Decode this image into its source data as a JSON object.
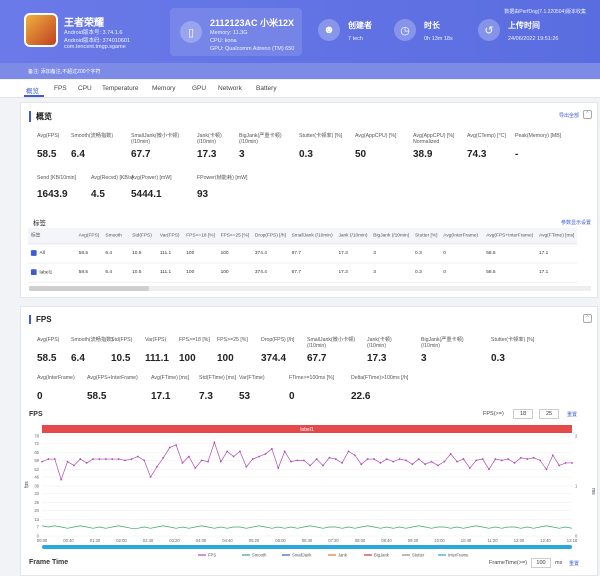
{
  "header": {
    "app_name": "王者荣耀",
    "app_version": "Android版本号: 3.74.1.6",
    "app_code": "Android版本码: 374010601",
    "package": "com.tencent.tmgp.sgame",
    "device_model": "2112123AC 小米12X",
    "memory": "Memory: 11.3G",
    "cpu": "CPU: kona",
    "gpu": "GPU: Qualcomm Adreno (TM) 650",
    "creator_label": "创建者",
    "creator_value": "7 tech",
    "duration_label": "时长",
    "duration_value": "0h 13m 18s",
    "upload_label": "上传时间",
    "upload_value": "24/06/2022 19:51:26",
    "top_right": "数据由PerfDog(7.1.220504)版本收集",
    "note": "备注: 添加备注,不超过200个字符"
  },
  "tabs": [
    "概览",
    "FPS",
    "CPU",
    "Temperature",
    "Memory",
    "GPU",
    "Network",
    "Battery"
  ],
  "overview": {
    "title": "概览",
    "export_label": "导出全部",
    "metrics": [
      {
        "label": "Avg(FPS)",
        "value": "58.5"
      },
      {
        "label": "Smooth(流畅指数)",
        "value": "6.4"
      },
      {
        "label": "SmallJank(微小卡顿)\n(/10min)",
        "value": "67.7"
      },
      {
        "label": "Jank(卡顿)\n(/10min)",
        "value": "17.3"
      },
      {
        "label": "BigJank(严重卡顿)\n(/10min)",
        "value": "3"
      },
      {
        "label": "Stutter(卡顿率) [%]",
        "value": "0.3"
      },
      {
        "label": "Avg(AppCPU) [%]",
        "value": "50"
      },
      {
        "label": "Avg(AppCPU) [%]\nNormalized",
        "value": "38.9"
      },
      {
        "label": "Avg(CTemp) [°C]",
        "value": "74.3"
      },
      {
        "label": "Peak(Memory) [MB]",
        "value": "-"
      },
      {
        "label": "Send [KB/10min]",
        "value": "1643.9"
      },
      {
        "label": "Avg(Recvd) [KB/s]",
        "value": "4.5"
      },
      {
        "label": "Avg(Power) [mW]",
        "value": "5444.1"
      },
      {
        "label": "FPower(帧能耗) [mW]",
        "value": "93"
      }
    ],
    "label_section": "标签",
    "label_settings": "参数显示设置",
    "table_headers": [
      "标签",
      "Avg(FPS)",
      "Smooth",
      "Std(FPS)",
      "Var(FPS)",
      "FPS>=18 [%]",
      "FPS>=25 [%]",
      "Drop(FPS) [/h]",
      "SmallJank (/10min)",
      "Jank (/10min)",
      "BigJank (/10min)",
      "Stutter [%]",
      "Avg(InterFrame)",
      "Avg(FPS+InterFrame)",
      "Avg(FTime) [ms]"
    ],
    "table_rows": [
      [
        "All",
        "58.5",
        "6.4",
        "10.5",
        "111.1",
        "100",
        "100",
        "374.4",
        "67.7",
        "17.3",
        "3",
        "0.3",
        "0",
        "58.5",
        "17.1"
      ],
      [
        "label1",
        "58.5",
        "6.4",
        "10.5",
        "111.1",
        "100",
        "100",
        "374.4",
        "67.7",
        "17.3",
        "3",
        "0.3",
        "0",
        "58.5",
        "17.1"
      ]
    ]
  },
  "fps_panel": {
    "title": "FPS",
    "metrics_row1": [
      {
        "label": "Avg(FPS)",
        "value": "58.5"
      },
      {
        "label": "Smooth(流畅指数)",
        "value": "6.4"
      },
      {
        "label": "Std(FPS)",
        "value": "10.5"
      },
      {
        "label": "Var(FPS)",
        "value": "111.1"
      },
      {
        "label": "FPS>=18 [%]",
        "value": "100"
      },
      {
        "label": "FPS>=25 [%]",
        "value": "100"
      },
      {
        "label": "Drop(FPS) [/h]",
        "value": "374.4"
      },
      {
        "label": "SmallJank(微小卡顿)\n(/10min)",
        "value": "67.7"
      },
      {
        "label": "Jank(卡顿)\n(/10min)",
        "value": "17.3"
      },
      {
        "label": "BigJank(严重卡顿)\n(/10min)",
        "value": "3"
      },
      {
        "label": "Stutter(卡顿率) [%]",
        "value": "0.3"
      }
    ],
    "metrics_row2": [
      {
        "label": "Avg(InterFrame)",
        "value": "0"
      },
      {
        "label": "Avg(FPS+InterFrame)",
        "value": "58.5"
      },
      {
        "label": "Avg(FTime) [ms]",
        "value": "17.1"
      },
      {
        "label": "Std(FTime) [ms]",
        "value": "7.3"
      },
      {
        "label": "Var(FTime)",
        "value": "53"
      },
      {
        "label": "FTime>=100ms [%]",
        "value": "0"
      },
      {
        "label": "Delta(FTime)>100ms [/h]",
        "value": "22.6"
      }
    ],
    "chart_title": "FPS",
    "fps_ge_label": "FPS(>=)",
    "fps_ge_1": "18",
    "fps_ge_2": "25",
    "reset": "重置",
    "label_band": "label1",
    "ftime_title": "Frame Time",
    "ftime_ge_label": "FrameTime(>=)",
    "ftime_ge": "100",
    "ftime_unit": "ms",
    "ftime_reset": "重置"
  },
  "chart_data": {
    "type": "line",
    "title": "FPS",
    "ylabel": "fps",
    "ylabel_right": "ms",
    "ylim": [
      0,
      78
    ],
    "yticks": [
      0,
      7,
      13,
      20,
      26,
      33,
      39,
      46,
      52,
      59,
      65,
      72,
      78
    ],
    "y2ticks": [
      0,
      1,
      2
    ],
    "xticks": [
      "00:00",
      "00:40",
      "01:20",
      "02:00",
      "02:40",
      "03:20",
      "04:00",
      "04:40",
      "05:20",
      "06:00",
      "06:40",
      "07:20",
      "08:00",
      "08:40",
      "09:20",
      "10:00",
      "10:40",
      "11:20",
      "12:00",
      "12:40",
      "13:18"
    ],
    "legend": [
      "FPS",
      "Smooth",
      "SmallJank",
      "Jank",
      "BigJank",
      "Stutter",
      "InterFrame"
    ],
    "colors": {
      "FPS": "#b04ab8",
      "Smooth": "#3aa86a",
      "SmallJank": "#3a5cd8",
      "Jank": "#e07a2a",
      "BigJank": "#e03030",
      "Stutter": "#888888",
      "InterFrame": "#2aa8c8"
    },
    "series": [
      {
        "name": "FPS",
        "values": [
          58,
          60,
          60,
          44,
          58,
          55,
          60,
          57,
          60,
          60,
          60,
          60,
          60,
          59,
          60,
          62,
          59,
          46,
          54,
          61,
          69,
          71,
          57,
          62,
          53,
          59,
          58,
          73,
          58,
          66,
          62,
          66,
          54,
          60,
          62,
          64,
          68,
          53,
          66,
          58,
          59,
          59,
          55,
          60,
          55,
          61,
          60,
          57,
          66,
          63,
          56,
          60,
          60,
          57,
          60,
          58,
          60,
          59,
          56,
          60,
          56,
          58,
          55,
          58,
          64,
          58,
          60,
          53,
          59,
          60,
          52,
          60,
          59,
          60,
          57,
          61,
          60,
          61,
          59,
          52,
          63,
          55,
          57,
          57
        ]
      },
      {
        "name": "Smooth",
        "values": [
          8,
          7,
          8,
          7,
          6,
          7,
          8,
          7,
          6,
          7,
          6,
          7,
          8,
          7,
          6,
          6,
          7,
          6,
          7,
          8,
          7,
          6,
          7,
          6,
          7,
          8,
          7,
          6,
          7,
          6,
          7,
          7,
          6,
          7,
          8,
          7,
          6,
          7,
          6,
          7,
          6,
          7,
          8,
          7,
          6,
          7,
          7,
          6,
          7,
          6,
          7,
          8,
          7,
          6,
          7,
          6,
          7,
          6,
          7,
          8,
          7,
          6,
          7,
          7,
          6,
          7,
          6,
          7,
          8,
          7,
          6,
          7,
          6,
          7,
          7,
          6,
          7,
          6,
          7,
          8,
          7,
          6,
          7,
          6
        ]
      }
    ]
  },
  "ui_colors": {
    "accent": "#3a5cd8",
    "header": "#6a7ae8",
    "label_band": "#e44a4a",
    "slider": "#29a8e0"
  }
}
